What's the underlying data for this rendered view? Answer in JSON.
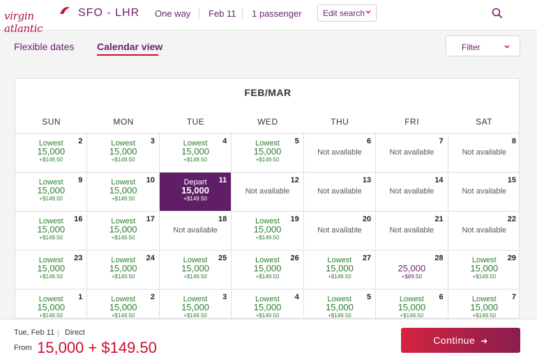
{
  "header": {
    "logo_text": "virgin atlantic",
    "route": "SFO - LHR",
    "trip_type": "One way",
    "date": "Feb 11",
    "passengers": "1 passenger",
    "edit_label": "Edit search"
  },
  "tabs": [
    {
      "label": "Flexible dates",
      "active": false
    },
    {
      "label": "Calendar view",
      "active": true
    }
  ],
  "filter_label": "Filter",
  "calendar": {
    "month": "FEB/MAR",
    "weekdays": [
      "SUN",
      "MON",
      "TUE",
      "WED",
      "THU",
      "FRI",
      "SAT"
    ],
    "days": [
      {
        "num": "2",
        "label": "Lowest",
        "points": "15,000",
        "tax": "+$149.50"
      },
      {
        "num": "3",
        "label": "Lowest",
        "points": "15,000",
        "tax": "+$149.50"
      },
      {
        "num": "4",
        "label": "Lowest",
        "points": "15,000",
        "tax": "+$149.50"
      },
      {
        "num": "5",
        "label": "Lowest",
        "points": "15,000",
        "tax": "+$149.50"
      },
      {
        "num": "6",
        "na": "Not available"
      },
      {
        "num": "7",
        "na": "Not available"
      },
      {
        "num": "8",
        "na": "Not available"
      },
      {
        "num": "9",
        "label": "Lowest",
        "points": "15,000",
        "tax": "+$149.50"
      },
      {
        "num": "10",
        "label": "Lowest",
        "points": "15,000",
        "tax": "+$149.50"
      },
      {
        "num": "11",
        "label": "Depart",
        "points": "15,000",
        "tax": "+$149.50",
        "selected": true
      },
      {
        "num": "12",
        "na": "Not available"
      },
      {
        "num": "13",
        "na": "Not available"
      },
      {
        "num": "14",
        "na": "Not available"
      },
      {
        "num": "15",
        "na": "Not available"
      },
      {
        "num": "16",
        "label": "Lowest",
        "points": "15,000",
        "tax": "+$149.50"
      },
      {
        "num": "17",
        "label": "Lowest",
        "points": "15,000",
        "tax": "+$149.50"
      },
      {
        "num": "18",
        "na": "Not available"
      },
      {
        "num": "19",
        "label": "Lowest",
        "points": "15,000",
        "tax": "+$149.50"
      },
      {
        "num": "20",
        "na": "Not available"
      },
      {
        "num": "21",
        "na": "Not available"
      },
      {
        "num": "22",
        "na": "Not available"
      },
      {
        "num": "23",
        "label": "Lowest",
        "points": "15,000",
        "tax": "+$149.50"
      },
      {
        "num": "24",
        "label": "Lowest",
        "points": "15,000",
        "tax": "+$149.50"
      },
      {
        "num": "25",
        "label": "Lowest",
        "points": "15,000",
        "tax": "+$149.50"
      },
      {
        "num": "26",
        "label": "Lowest",
        "points": "15,000",
        "tax": "+$149.50"
      },
      {
        "num": "27",
        "label": "Lowest",
        "points": "15,000",
        "tax": "+$149.50"
      },
      {
        "num": "28",
        "points": "25,000",
        "tax": "+$89.50",
        "purple": true
      },
      {
        "num": "29",
        "label": "Lowest",
        "points": "15,000",
        "tax": "+$149.50"
      },
      {
        "num": "1",
        "label": "Lowest",
        "points": "15,000",
        "tax": "+$149.50"
      },
      {
        "num": "2",
        "label": "Lowest",
        "points": "15,000",
        "tax": "+$149.50"
      },
      {
        "num": "3",
        "label": "Lowest",
        "points": "15,000",
        "tax": "+$149.50"
      },
      {
        "num": "4",
        "label": "Lowest",
        "points": "15,000",
        "tax": "+$149.50"
      },
      {
        "num": "5",
        "label": "Lowest",
        "points": "15,000",
        "tax": "+$149.50"
      },
      {
        "num": "6",
        "label": "Lowest",
        "points": "15,000",
        "tax": "+$149.50"
      },
      {
        "num": "7",
        "label": "Lowest",
        "points": "15,000",
        "tax": "+$149.50"
      }
    ]
  },
  "footer": {
    "date": "Tue, Feb 11",
    "direct": "Direct",
    "from_label": "From",
    "price": "15,000 + $149.50",
    "continue_label": "Continue"
  },
  "colors": {
    "brand_red": "#c8102e",
    "brand_purple": "#5f1e66",
    "available_green": "#2a7d2a"
  }
}
